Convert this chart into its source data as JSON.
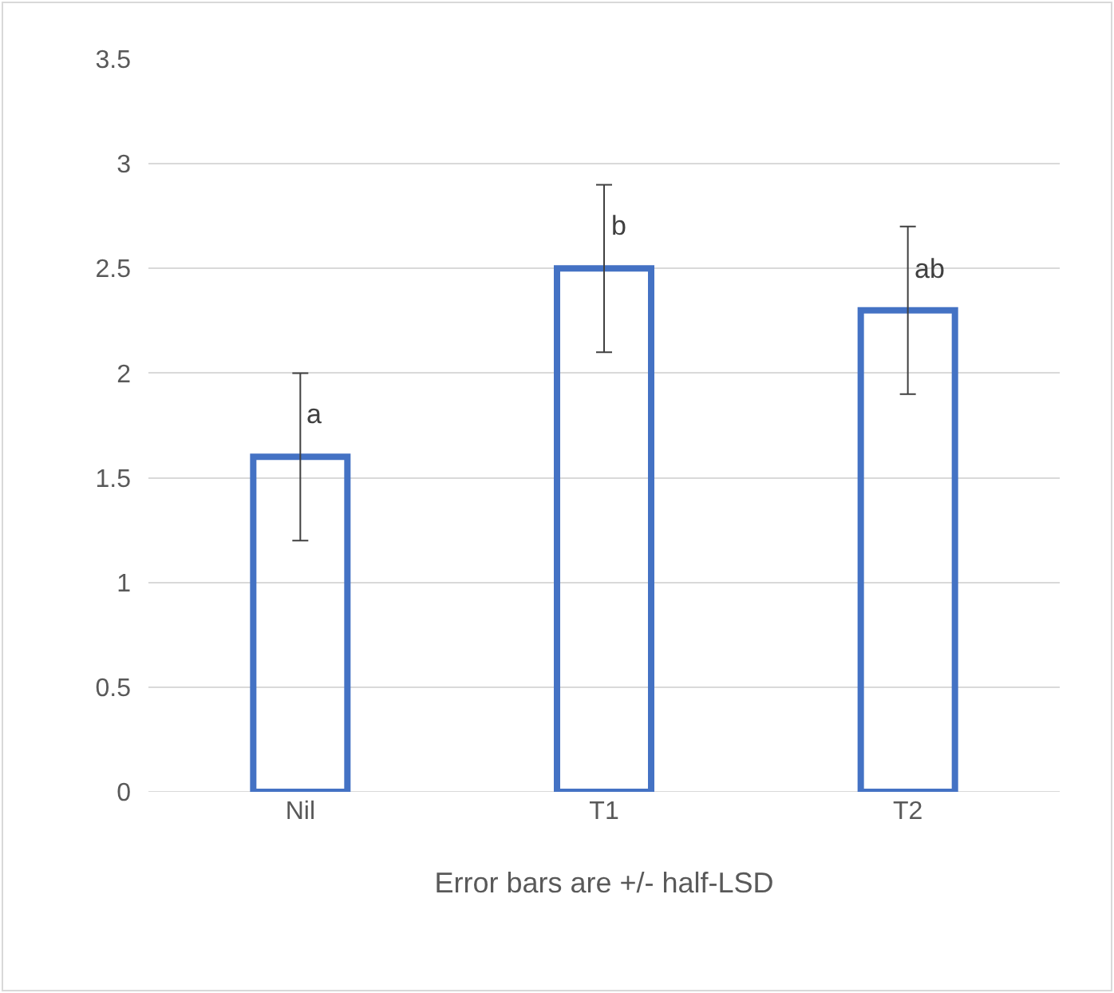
{
  "chart_data": {
    "type": "bar",
    "xlabel": "Error bars are +/- half-LSD",
    "categories": [
      "Nil",
      "T1",
      "T2"
    ],
    "values": [
      1.6,
      2.5,
      2.3
    ],
    "errors": [
      0.4,
      0.4,
      0.4
    ],
    "color": "#4472c4",
    "ylim": [
      0,
      3.5
    ],
    "yticks": [
      0,
      0.5,
      1,
      1.5,
      2,
      2.5,
      3,
      3.5
    ],
    "grid": "y",
    "annotations": [
      {
        "text": "a",
        "x": "Nil",
        "y": 1.8
      },
      {
        "text": "b",
        "x": "T1",
        "y": 2.7
      },
      {
        "text": "ab",
        "x": "T2",
        "y": 2.5
      }
    ]
  }
}
